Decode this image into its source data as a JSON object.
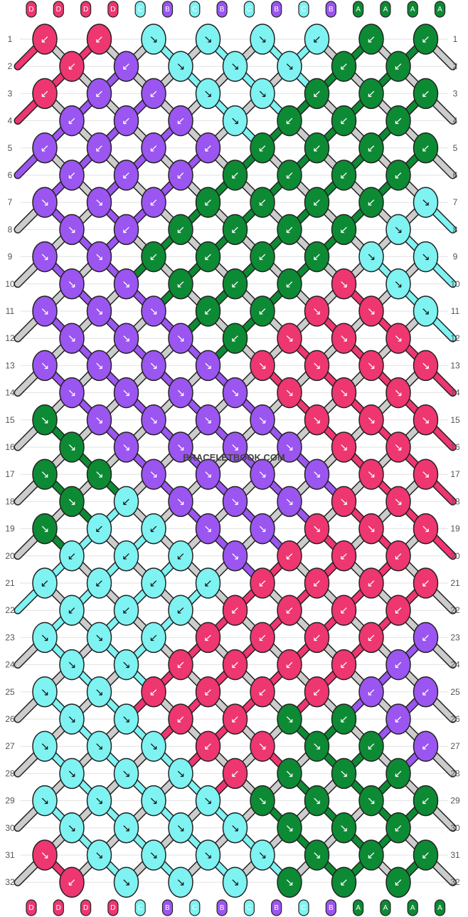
{
  "watermark": "BRACELETBOOK.COM",
  "colors": {
    "A": "#0d8a34",
    "B": "#9b55f0",
    "C": "#7ff2f2",
    "D": "#ee3670"
  },
  "top_strings": [
    "D",
    "D",
    "D",
    "D",
    "C",
    "B",
    "C",
    "B",
    "C",
    "B",
    "C",
    "B",
    "A",
    "A",
    "A",
    "A"
  ],
  "bottom_strings": [
    "D",
    "D",
    "D",
    "D",
    "C",
    "B",
    "C",
    "B",
    "C",
    "B",
    "C",
    "B",
    "A",
    "A",
    "A",
    "A"
  ],
  "row_numbers": [
    "1",
    "2",
    "3",
    "4",
    "5",
    "6",
    "7",
    "8",
    "9",
    "10",
    "11",
    "12",
    "13",
    "14",
    "15",
    "16",
    "17",
    "18",
    "19",
    "20",
    "21",
    "22",
    "23",
    "24",
    "25",
    "26",
    "27",
    "28",
    "29",
    "30",
    "31",
    "32"
  ],
  "knots": [
    [
      "D",
      "D",
      "C",
      "C",
      "C",
      "C",
      "A",
      "A"
    ],
    [
      "D",
      "B",
      "C",
      "C",
      "C",
      "A",
      "A"
    ],
    [
      "D",
      "B",
      "B",
      "C",
      "C",
      "A",
      "A",
      "A"
    ],
    [
      "B",
      "B",
      "B",
      "C",
      "A",
      "A",
      "A"
    ],
    [
      "B",
      "B",
      "B",
      "B",
      "A",
      "A",
      "A",
      "A"
    ],
    [
      "B",
      "B",
      "B",
      "A",
      "A",
      "A",
      "A"
    ],
    [
      "B",
      "B",
      "B",
      "A",
      "A",
      "A",
      "A",
      "C"
    ],
    [
      "B",
      "B",
      "A",
      "A",
      "A",
      "A",
      "C"
    ],
    [
      "B",
      "B",
      "A",
      "A",
      "A",
      "A",
      "C",
      "C"
    ],
    [
      "B",
      "B",
      "A",
      "A",
      "A",
      "D",
      "C"
    ],
    [
      "B",
      "B",
      "B",
      "A",
      "A",
      "D",
      "D",
      "C"
    ],
    [
      "B",
      "B",
      "B",
      "A",
      "D",
      "D",
      "D"
    ],
    [
      "B",
      "B",
      "B",
      "B",
      "D",
      "D",
      "D",
      "D"
    ],
    [
      "B",
      "B",
      "B",
      "B",
      "D",
      "D",
      "D"
    ],
    [
      "A",
      "B",
      "B",
      "B",
      "B",
      "D",
      "D",
      "D"
    ],
    [
      "A",
      "B",
      "B",
      "B",
      "B",
      "D",
      "D"
    ],
    [
      "A",
      "A",
      "B",
      "B",
      "B",
      "B",
      "D",
      "D"
    ],
    [
      "A",
      "C",
      "B",
      "B",
      "B",
      "D",
      "D"
    ],
    [
      "A",
      "C",
      "C",
      "B",
      "B",
      "D",
      "D",
      "D"
    ],
    [
      "C",
      "C",
      "C",
      "B",
      "D",
      "D",
      "D"
    ],
    [
      "C",
      "C",
      "C",
      "C",
      "D",
      "D",
      "D",
      "D"
    ],
    [
      "C",
      "C",
      "C",
      "D",
      "D",
      "D",
      "D"
    ],
    [
      "C",
      "C",
      "C",
      "D",
      "D",
      "D",
      "D",
      "B"
    ],
    [
      "C",
      "C",
      "D",
      "D",
      "D",
      "D",
      "B"
    ],
    [
      "C",
      "C",
      "D",
      "D",
      "D",
      "D",
      "B",
      "B"
    ],
    [
      "C",
      "C",
      "D",
      "D",
      "A",
      "A",
      "B"
    ],
    [
      "C",
      "C",
      "C",
      "D",
      "D",
      "A",
      "A",
      "B"
    ],
    [
      "C",
      "C",
      "C",
      "D",
      "A",
      "A",
      "A"
    ],
    [
      "C",
      "C",
      "C",
      "C",
      "A",
      "A",
      "A",
      "A"
    ],
    [
      "C",
      "C",
      "C",
      "C",
      "A",
      "A",
      "A"
    ],
    [
      "D",
      "C",
      "C",
      "C",
      "C",
      "A",
      "A",
      "A"
    ],
    [
      "D",
      "C",
      "C",
      "C",
      "A",
      "A",
      "A"
    ]
  ],
  "directions": [
    [
      "fl",
      "fl",
      "fr",
      "fr",
      "fr",
      "fl",
      "fl",
      "fl"
    ],
    [
      "fl",
      "fl",
      "fr",
      "fr",
      "fr",
      "fl",
      "fl"
    ],
    [
      "fl",
      "fl",
      "fl",
      "fr",
      "fr",
      "fl",
      "fl",
      "fl"
    ],
    [
      "fl",
      "fl",
      "fl",
      "fr",
      "fl",
      "fl",
      "fl"
    ],
    [
      "fl",
      "fl",
      "fl",
      "fl",
      "fl",
      "fl",
      "fl",
      "fl"
    ],
    [
      "fl",
      "fl",
      "fl",
      "fl",
      "fl",
      "fl",
      "fl"
    ],
    [
      "fr",
      "fr",
      "fl",
      "fl",
      "fl",
      "fl",
      "fl",
      "fr"
    ],
    [
      "fr",
      "fl",
      "fl",
      "fl",
      "fl",
      "fl",
      "fr"
    ],
    [
      "fr",
      "fr",
      "fl",
      "fl",
      "fl",
      "fl",
      "fr",
      "fr"
    ],
    [
      "fr",
      "fr",
      "fl",
      "fl",
      "fl",
      "fr",
      "fr"
    ],
    [
      "fr",
      "fr",
      "fr",
      "fl",
      "fl",
      "fr",
      "fr",
      "fr"
    ],
    [
      "fr",
      "fr",
      "fr",
      "fl",
      "fr",
      "fr",
      "fr"
    ],
    [
      "fr",
      "fr",
      "fr",
      "fr",
      "fr",
      "fr",
      "fr",
      "fr"
    ],
    [
      "fr",
      "fr",
      "fr",
      "fr",
      "fr",
      "fr",
      "fr"
    ],
    [
      "fr",
      "fr",
      "fr",
      "fr",
      "fr",
      "fr",
      "fr",
      "fr"
    ],
    [
      "fr",
      "fr",
      "fr",
      "fr",
      "fr",
      "fr",
      "fr"
    ],
    [
      "fr",
      "fr",
      "fr",
      "fr",
      "fr",
      "fr",
      "fr",
      "fr"
    ],
    [
      "fr",
      "fl",
      "fr",
      "fr",
      "fr",
      "fr",
      "fr"
    ],
    [
      "fr",
      "fl",
      "fl",
      "fr",
      "fr",
      "fr",
      "fr",
      "fr"
    ],
    [
      "fl",
      "fl",
      "fl",
      "fr",
      "fl",
      "fl",
      "fl"
    ],
    [
      "fl",
      "fl",
      "fl",
      "fl",
      "fl",
      "fl",
      "fl",
      "fl"
    ],
    [
      "fl",
      "fl",
      "fl",
      "fl",
      "fl",
      "fl",
      "fl"
    ],
    [
      "fr",
      "fr",
      "fl",
      "fl",
      "fl",
      "fl",
      "fl",
      "fl"
    ],
    [
      "fr",
      "fr",
      "fl",
      "fl",
      "fl",
      "fl",
      "fl"
    ],
    [
      "fr",
      "fr",
      "fl",
      "fl",
      "fl",
      "fl",
      "fl",
      "fl"
    ],
    [
      "fr",
      "fr",
      "fl",
      "fl",
      "fr",
      "fl",
      "fl"
    ],
    [
      "fr",
      "fr",
      "fr",
      "fl",
      "fr",
      "fr",
      "fl",
      "fl"
    ],
    [
      "fr",
      "fr",
      "fr",
      "fl",
      "fr",
      "fr",
      "fl"
    ],
    [
      "fr",
      "fr",
      "fr",
      "fr",
      "fr",
      "fr",
      "fr",
      "fl"
    ],
    [
      "fr",
      "fr",
      "fr",
      "fr",
      "fr",
      "fr",
      "fl"
    ],
    [
      "fr",
      "fr",
      "fr",
      "fr",
      "fr",
      "fr",
      "fl",
      "fl"
    ],
    [
      "fl",
      "fr",
      "fr",
      "fr",
      "fr",
      "fl",
      "fl"
    ]
  ]
}
